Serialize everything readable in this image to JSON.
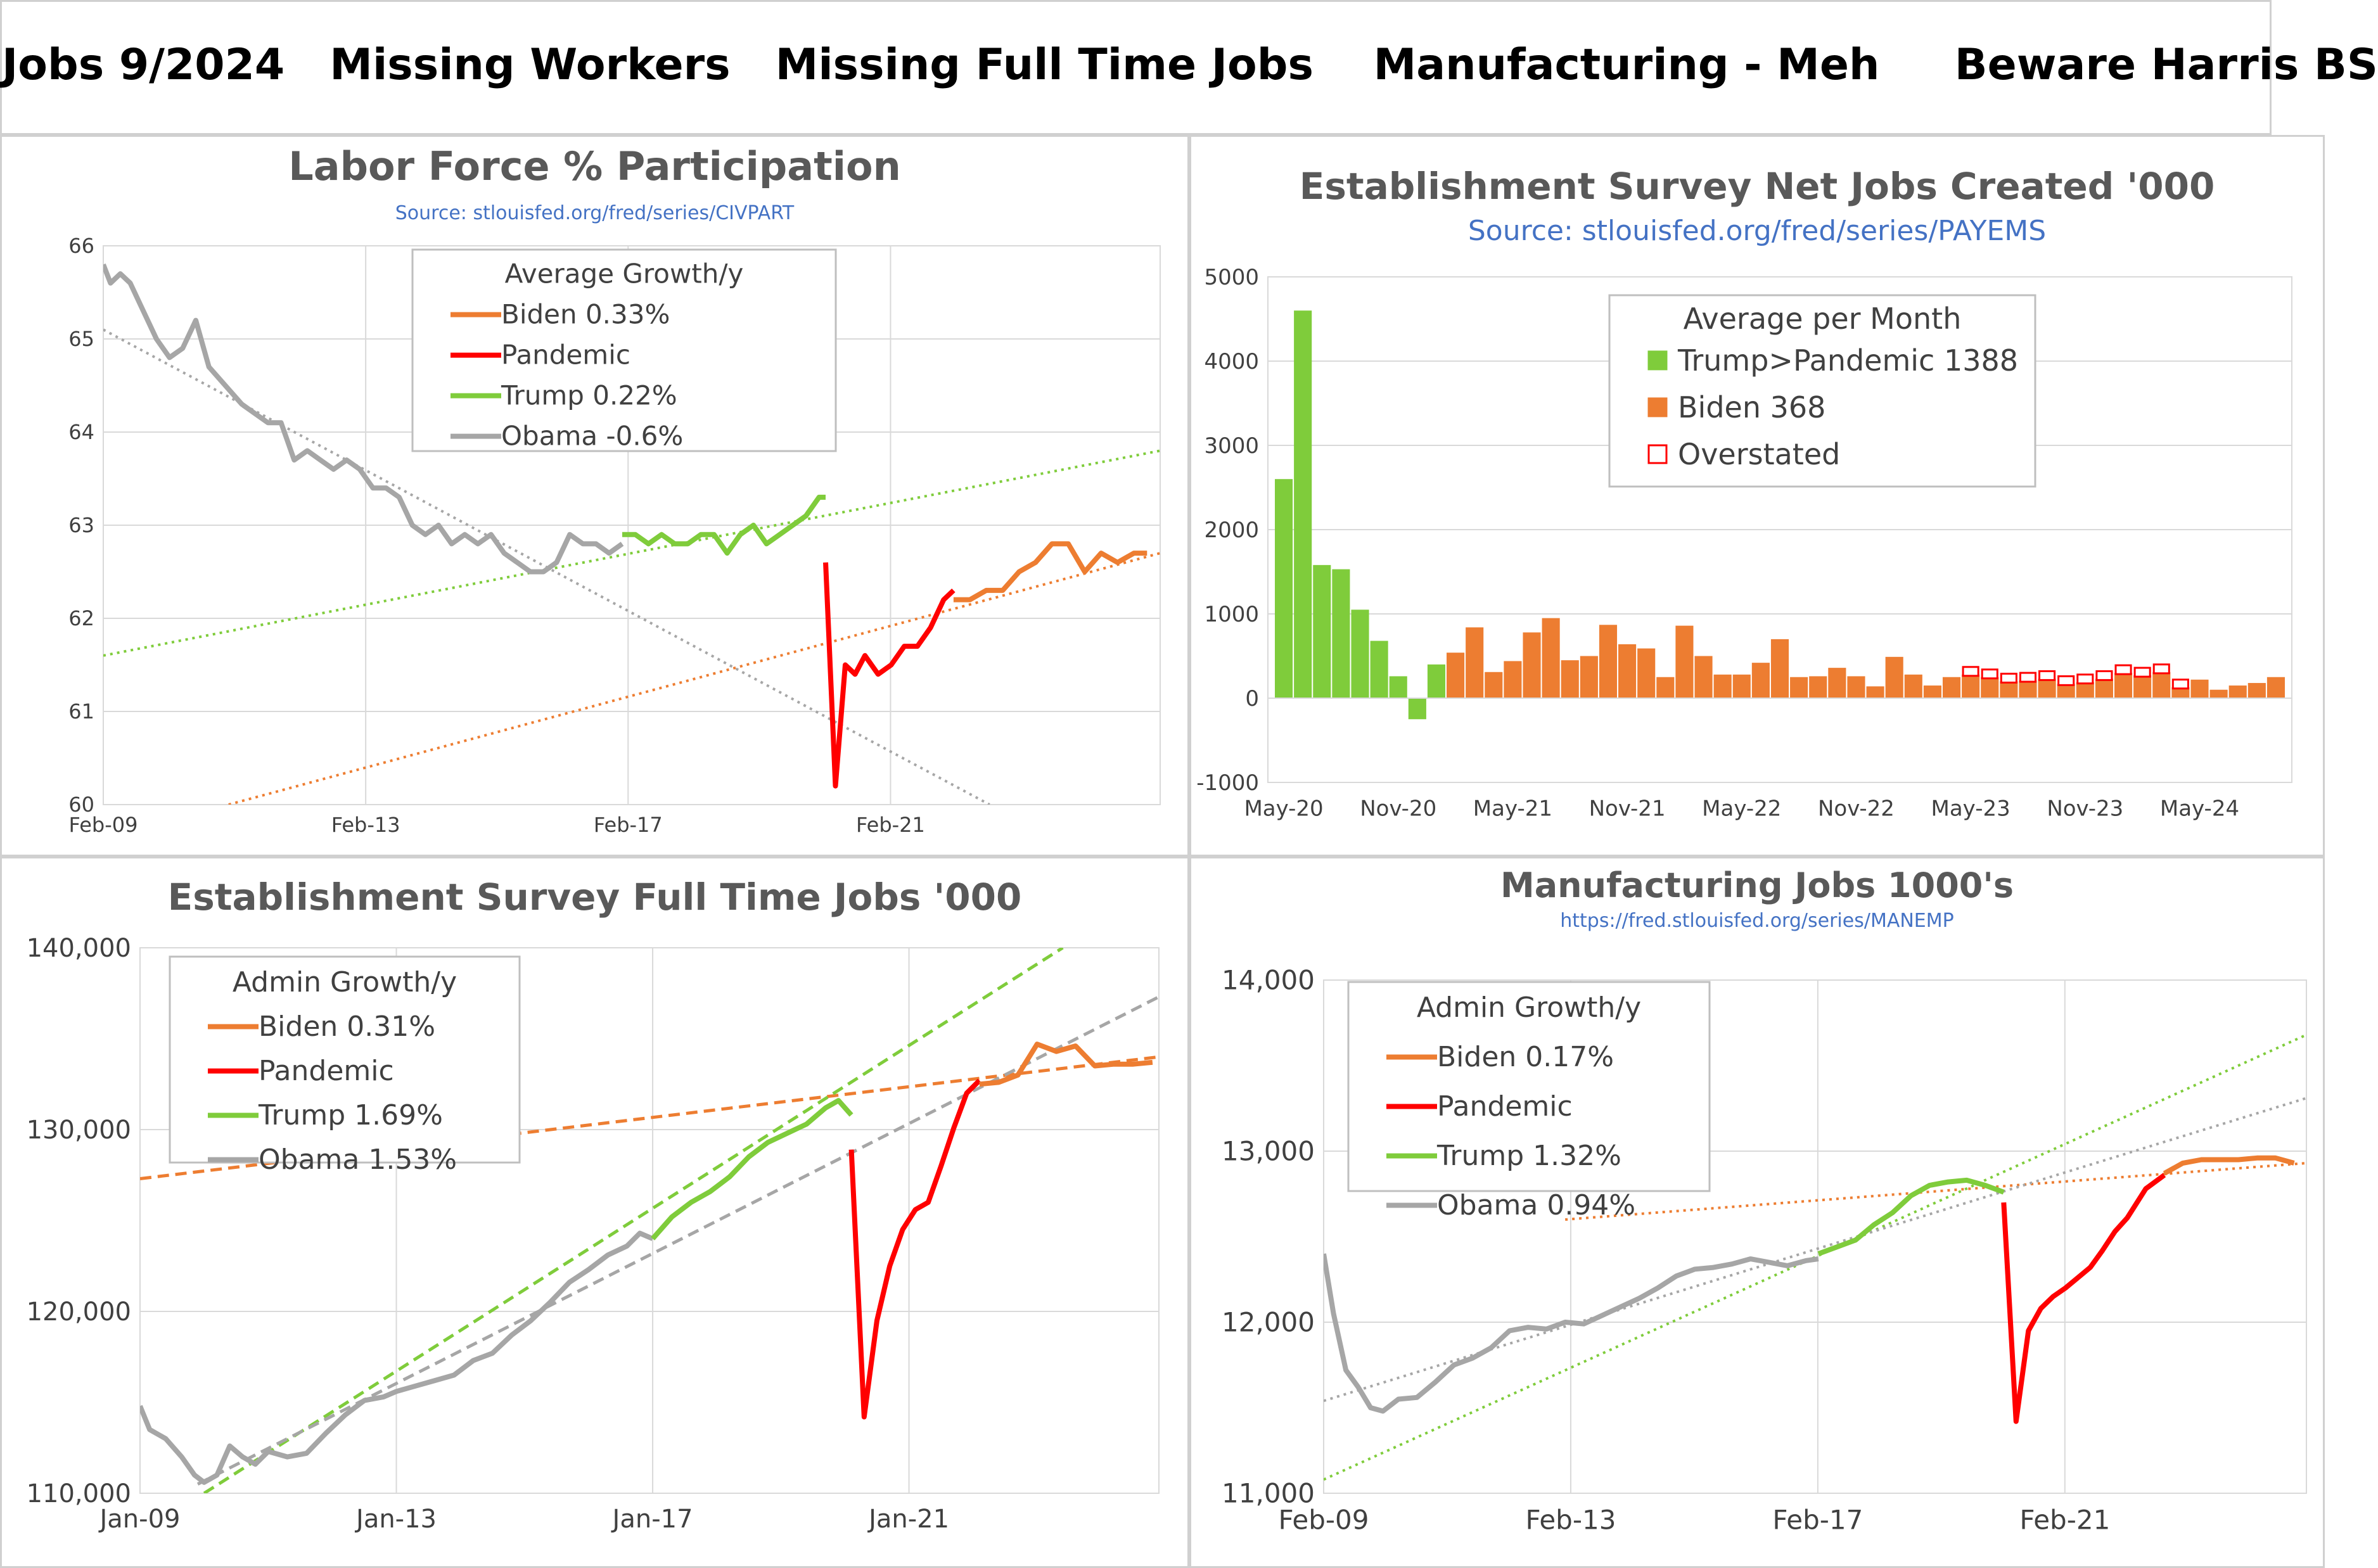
{
  "title": "Jobs 9/2024   Missing Workers   Missing Full Time Jobs    Manufacturing - Meh     Beware Harris BS",
  "colors": {
    "biden": "#ed7d31",
    "pandemic": "#ff0000",
    "trump": "#7fcc3b",
    "obama": "#a6a6a6",
    "overstated": "#ff0000",
    "source": "#4472c4"
  },
  "chart_data": [
    {
      "type": "line",
      "title": "Labor Force % Participation",
      "source": "Source: stlouisfed.org/fred/series/CIVPART",
      "xlabels": [
        "Feb-09",
        "Feb-13",
        "Feb-17",
        "Feb-21"
      ],
      "xlabel_values": [
        2009.09,
        2013.09,
        2017.09,
        2021.09
      ],
      "xlim": [
        2009.09,
        2025.2
      ],
      "ylim": [
        60,
        66
      ],
      "yticks": [
        "60",
        "61",
        "62",
        "63",
        "64",
        "65",
        "66"
      ],
      "legend": {
        "title": "Average Growth/y",
        "entries": [
          "Biden 0.33%",
          "Pandemic",
          "Trump 0.22%",
          "Obama -0.6%"
        ],
        "placement": "top-center"
      },
      "series": [
        {
          "name": "Obama",
          "color": "#a6a6a6",
          "x": [
            2009.09,
            2009.2,
            2009.35,
            2009.5,
            2009.7,
            2009.9,
            2010.1,
            2010.3,
            2010.5,
            2010.7,
            2010.95,
            2011.2,
            2011.4,
            2011.6,
            2011.8,
            2012.0,
            2012.2,
            2012.4,
            2012.6,
            2012.8,
            2013.0,
            2013.2,
            2013.4,
            2013.6,
            2013.8,
            2014.0,
            2014.2,
            2014.4,
            2014.6,
            2014.8,
            2015.0,
            2015.2,
            2015.4,
            2015.6,
            2015.8,
            2016.0,
            2016.2,
            2016.4,
            2016.6,
            2016.8,
            2017.0
          ],
          "y": [
            65.8,
            65.6,
            65.7,
            65.6,
            65.3,
            65.0,
            64.8,
            64.9,
            65.2,
            64.7,
            64.5,
            64.3,
            64.2,
            64.1,
            64.1,
            63.7,
            63.8,
            63.7,
            63.6,
            63.7,
            63.6,
            63.4,
            63.4,
            63.3,
            63.0,
            62.9,
            63.0,
            62.8,
            62.9,
            62.8,
            62.9,
            62.7,
            62.6,
            62.5,
            62.5,
            62.6,
            62.9,
            62.8,
            62.8,
            62.7,
            62.8
          ]
        },
        {
          "name": "Trump",
          "color": "#7fcc3b",
          "x": [
            2017.0,
            2017.2,
            2017.4,
            2017.6,
            2017.8,
            2018.0,
            2018.2,
            2018.4,
            2018.6,
            2018.8,
            2019.0,
            2019.2,
            2019.4,
            2019.6,
            2019.8,
            2020.0,
            2020.1
          ],
          "y": [
            62.9,
            62.9,
            62.8,
            62.9,
            62.8,
            62.8,
            62.9,
            62.9,
            62.7,
            62.9,
            63.0,
            62.8,
            62.9,
            63.0,
            63.1,
            63.3,
            63.3
          ]
        },
        {
          "name": "Pandemic",
          "color": "#ff0000",
          "x": [
            2020.1,
            2020.25,
            2020.4,
            2020.55,
            2020.7,
            2020.9,
            2021.1,
            2021.3,
            2021.5,
            2021.7,
            2021.9,
            2022.05
          ],
          "y": [
            62.6,
            60.2,
            61.5,
            61.4,
            61.6,
            61.4,
            61.5,
            61.7,
            61.7,
            61.9,
            62.2,
            62.3
          ]
        },
        {
          "name": "Biden",
          "color": "#ed7d31",
          "x": [
            2022.05,
            2022.3,
            2022.55,
            2022.8,
            2023.05,
            2023.3,
            2023.55,
            2023.8,
            2024.05,
            2024.3,
            2024.55,
            2024.8,
            2025.0
          ],
          "y": [
            62.2,
            62.2,
            62.3,
            62.3,
            62.5,
            62.6,
            62.8,
            62.8,
            62.5,
            62.7,
            62.6,
            62.7,
            62.7
          ]
        }
      ],
      "trendlines": [
        {
          "name": "Obama",
          "color": "#a6a6a6",
          "x": [
            2009.09,
            2022.6
          ],
          "y": [
            65.1,
            60.0
          ]
        },
        {
          "name": "Trump",
          "color": "#7fcc3b",
          "x": [
            2009.09,
            2025.2
          ],
          "y": [
            61.6,
            63.8
          ]
        },
        {
          "name": "Biden",
          "color": "#ed7d31",
          "x": [
            2011.0,
            2025.2
          ],
          "y": [
            60.0,
            62.7
          ]
        }
      ]
    },
    {
      "type": "bar",
      "title": "Establishment Survey Net Jobs Created '000",
      "source": "Source: stlouisfed.org/fred/series/PAYEMS",
      "categories": [
        "May-20",
        "Jun-20",
        "Jul-20",
        "Aug-20",
        "Sep-20",
        "Oct-20",
        "Nov-20",
        "Dec-20",
        "Jan-21",
        "Feb-21",
        "Mar-21",
        "Apr-21",
        "May-21",
        "Jun-21",
        "Jul-21",
        "Aug-21",
        "Sep-21",
        "Oct-21",
        "Nov-21",
        "Dec-21",
        "Jan-22",
        "Feb-22",
        "Mar-22",
        "Apr-22",
        "May-22",
        "Jun-22",
        "Jul-22",
        "Aug-22",
        "Sep-22",
        "Oct-22",
        "Nov-22",
        "Dec-22",
        "Jan-23",
        "Feb-23",
        "Mar-23",
        "Apr-23",
        "May-23",
        "Jun-23",
        "Jul-23",
        "Aug-23",
        "Sep-23",
        "Oct-23",
        "Nov-23",
        "Dec-23",
        "Jan-24",
        "Feb-24",
        "Mar-24",
        "Apr-24",
        "May-24",
        "Jun-24",
        "Jul-24",
        "Aug-24",
        "Sep-24"
      ],
      "xlabels": [
        "May-20",
        "Nov-20",
        "May-21",
        "Nov-21",
        "May-22",
        "Nov-22",
        "May-23",
        "Nov-23",
        "May-24"
      ],
      "values": [
        2600,
        4600,
        1580,
        1530,
        1050,
        680,
        260,
        -250,
        400,
        540,
        840,
        310,
        440,
        780,
        950,
        450,
        500,
        870,
        640,
        590,
        250,
        860,
        500,
        280,
        280,
        420,
        700,
        250,
        260,
        360,
        260,
        140,
        490,
        280,
        150,
        250,
        280,
        250,
        200,
        210,
        230,
        170,
        190,
        230,
        300,
        270,
        310,
        130,
        220,
        100,
        150,
        180,
        250
      ],
      "overstated": [
        false,
        false,
        false,
        false,
        false,
        false,
        false,
        false,
        false,
        false,
        false,
        false,
        false,
        false,
        false,
        false,
        false,
        false,
        false,
        false,
        false,
        false,
        false,
        false,
        false,
        false,
        false,
        false,
        false,
        false,
        false,
        false,
        false,
        false,
        false,
        false,
        true,
        true,
        true,
        true,
        true,
        true,
        true,
        true,
        true,
        true,
        true,
        true,
        false,
        false,
        false,
        false,
        false
      ],
      "colors": [
        "#7fcc3b",
        "#7fcc3b",
        "#7fcc3b",
        "#7fcc3b",
        "#7fcc3b",
        "#7fcc3b",
        "#7fcc3b",
        "#7fcc3b",
        "#7fcc3b",
        "#ed7d31",
        "#ed7d31",
        "#ed7d31",
        "#ed7d31",
        "#ed7d31",
        "#ed7d31",
        "#ed7d31",
        "#ed7d31",
        "#ed7d31",
        "#ed7d31",
        "#ed7d31",
        "#ed7d31",
        "#ed7d31",
        "#ed7d31",
        "#ed7d31",
        "#ed7d31",
        "#ed7d31",
        "#ed7d31",
        "#ed7d31",
        "#ed7d31",
        "#ed7d31",
        "#ed7d31",
        "#ed7d31",
        "#ed7d31",
        "#ed7d31",
        "#ed7d31",
        "#ed7d31",
        "#ed7d31",
        "#ed7d31",
        "#ed7d31",
        "#ed7d31",
        "#ed7d31",
        "#ed7d31",
        "#ed7d31",
        "#ed7d31",
        "#ed7d31",
        "#ed7d31",
        "#ed7d31",
        "#ed7d31",
        "#ed7d31",
        "#ed7d31",
        "#ed7d31",
        "#ed7d31",
        "#ed7d31"
      ],
      "ylim": [
        -1000,
        5000
      ],
      "yticks": [
        "-1000",
        "0",
        "1000",
        "2000",
        "3000",
        "4000",
        "5000"
      ],
      "legend": {
        "title": "Average per Month",
        "entries": [
          "Trump>Pandemic 1388",
          "Biden 368",
          "Overstated"
        ],
        "placement": "top-center"
      }
    },
    {
      "type": "line",
      "title": "Establishment Survey Full Time Jobs '000",
      "xlabels": [
        "Jan-09",
        "Jan-13",
        "Jan-17",
        "Jan-21"
      ],
      "xlabel_values": [
        2009.0,
        2013.0,
        2017.0,
        2021.0
      ],
      "xlim": [
        2009.0,
        2024.9
      ],
      "ylim": [
        110000,
        140000
      ],
      "yticks": [
        "110,000",
        "120,000",
        "130,000",
        "140,000"
      ],
      "legend": {
        "title": "Admin Growth/y",
        "entries": [
          "Biden 0.31%",
          "Pandemic",
          "Trump 1.69%",
          "Obama 1.53%"
        ],
        "placement": "top-left"
      },
      "series": [
        {
          "name": "Obama",
          "color": "#a6a6a6",
          "x": [
            2009.0,
            2009.15,
            2009.4,
            2009.65,
            2009.85,
            2010.0,
            2010.2,
            2010.4,
            2010.6,
            2010.8,
            2011.0,
            2011.3,
            2011.6,
            2011.9,
            2012.2,
            2012.5,
            2012.8,
            2013.0,
            2013.3,
            2013.6,
            2013.9,
            2014.2,
            2014.5,
            2014.8,
            2015.1,
            2015.4,
            2015.7,
            2016.0,
            2016.3,
            2016.6,
            2016.8,
            2017.0
          ],
          "y": [
            114800,
            113500,
            113000,
            112000,
            111000,
            110600,
            111000,
            112600,
            112000,
            111600,
            112300,
            112000,
            112200,
            113300,
            114300,
            115100,
            115300,
            115600,
            115900,
            116200,
            116500,
            117300,
            117700,
            118700,
            119500,
            120500,
            121600,
            122300,
            123100,
            123600,
            124300,
            124000
          ]
        },
        {
          "name": "Trump",
          "color": "#7fcc3b",
          "x": [
            2017.0,
            2017.3,
            2017.6,
            2017.9,
            2018.2,
            2018.5,
            2018.8,
            2019.1,
            2019.4,
            2019.7,
            2019.9,
            2020.1
          ],
          "y": [
            124000,
            125200,
            126000,
            126600,
            127400,
            128500,
            129300,
            129800,
            130300,
            131200,
            131600,
            130800
          ]
        },
        {
          "name": "Pandemic",
          "color": "#ff0000",
          "x": [
            2020.1,
            2020.3,
            2020.5,
            2020.7,
            2020.9,
            2021.1,
            2021.3,
            2021.5,
            2021.7,
            2021.9,
            2022.1
          ],
          "y": [
            128900,
            114200,
            119500,
            122500,
            124500,
            125600,
            126000,
            128000,
            130100,
            132000,
            132700
          ]
        },
        {
          "name": "Biden",
          "color": "#ed7d31",
          "x": [
            2022.1,
            2022.4,
            2022.7,
            2023.0,
            2023.3,
            2023.6,
            2023.9,
            2024.2,
            2024.5,
            2024.8
          ],
          "y": [
            132500,
            132600,
            133000,
            134700,
            134300,
            134600,
            133500,
            133600,
            133600,
            133700
          ]
        }
      ],
      "trendlines": [
        {
          "name": "Biden",
          "color": "#ed7d31",
          "x": [
            2009.0,
            2024.9
          ],
          "y": [
            127300,
            134000
          ]
        },
        {
          "name": "Trump",
          "color": "#7fcc3b",
          "x": [
            2010.0,
            2023.4
          ],
          "y": [
            110000,
            140000
          ]
        },
        {
          "name": "Obama",
          "color": "#a6a6a6",
          "x": [
            2009.9,
            2024.9
          ],
          "y": [
            110500,
            137300
          ]
        }
      ]
    },
    {
      "type": "line",
      "title": "Manufacturing Jobs 1000's",
      "source": "https://fred.stlouisfed.org/series/MANEMP",
      "xlabels": [
        "Feb-09",
        "Feb-13",
        "Feb-17",
        "Feb-21"
      ],
      "xlabel_values": [
        2009.09,
        2013.09,
        2017.09,
        2021.09
      ],
      "xlim": [
        2009.09,
        2025.0
      ],
      "ylim": [
        11000,
        14000
      ],
      "yticks": [
        "11,000",
        "12,000",
        "13,000",
        "14,000"
      ],
      "legend": {
        "title": "Admin  Growth/y",
        "entries": [
          "Biden 0.17%",
          "Pandemic",
          "Trump 1.32%",
          "Obama 0.94%"
        ],
        "placement": "top-left"
      },
      "series": [
        {
          "name": "Obama",
          "color": "#a6a6a6",
          "x": [
            2009.09,
            2009.25,
            2009.45,
            2009.65,
            2009.85,
            2010.05,
            2010.3,
            2010.6,
            2010.9,
            2011.2,
            2011.5,
            2011.8,
            2012.1,
            2012.4,
            2012.7,
            2013.0,
            2013.3,
            2013.6,
            2013.9,
            2014.2,
            2014.5,
            2014.8,
            2015.1,
            2015.4,
            2015.7,
            2016.0,
            2016.3,
            2016.6,
            2016.9,
            2017.1
          ],
          "y": [
            12400,
            12050,
            11720,
            11620,
            11500,
            11480,
            11550,
            11560,
            11650,
            11750,
            11790,
            11850,
            11950,
            11970,
            11960,
            12000,
            11990,
            12040,
            12090,
            12140,
            12200,
            12270,
            12310,
            12320,
            12340,
            12370,
            12350,
            12330,
            12360,
            12370
          ]
        },
        {
          "name": "Trump",
          "color": "#7fcc3b",
          "x": [
            2017.1,
            2017.4,
            2017.7,
            2018.0,
            2018.3,
            2018.6,
            2018.9,
            2019.2,
            2019.5,
            2019.8,
            2020.1
          ],
          "y": [
            12400,
            12440,
            12480,
            12570,
            12640,
            12740,
            12800,
            12820,
            12830,
            12800,
            12760
          ]
        },
        {
          "name": "Pandemic",
          "color": "#ff0000",
          "x": [
            2020.1,
            2020.3,
            2020.5,
            2020.7,
            2020.9,
            2021.1,
            2021.3,
            2021.5,
            2021.7,
            2021.9,
            2022.1,
            2022.4,
            2022.7
          ],
          "y": [
            12700,
            11420,
            11950,
            12080,
            12150,
            12200,
            12260,
            12320,
            12420,
            12530,
            12610,
            12780,
            12860
          ]
        },
        {
          "name": "Biden",
          "color": "#ed7d31",
          "x": [
            2022.7,
            2023.0,
            2023.3,
            2023.6,
            2023.9,
            2024.2,
            2024.5,
            2024.8
          ],
          "y": [
            12870,
            12930,
            12950,
            12950,
            12950,
            12960,
            12960,
            12930
          ]
        }
      ],
      "trendlines": [
        {
          "name": "Biden",
          "color": "#ed7d31",
          "x": [
            2013.0,
            2025.0
          ],
          "y": [
            12600,
            12930
          ]
        },
        {
          "name": "Trump",
          "color": "#7fcc3b",
          "x": [
            2009.09,
            2025.0
          ],
          "y": [
            11080,
            13680
          ]
        },
        {
          "name": "Obama",
          "color": "#a6a6a6",
          "x": [
            2009.09,
            2025.0
          ],
          "y": [
            11540,
            13310
          ]
        }
      ]
    }
  ]
}
